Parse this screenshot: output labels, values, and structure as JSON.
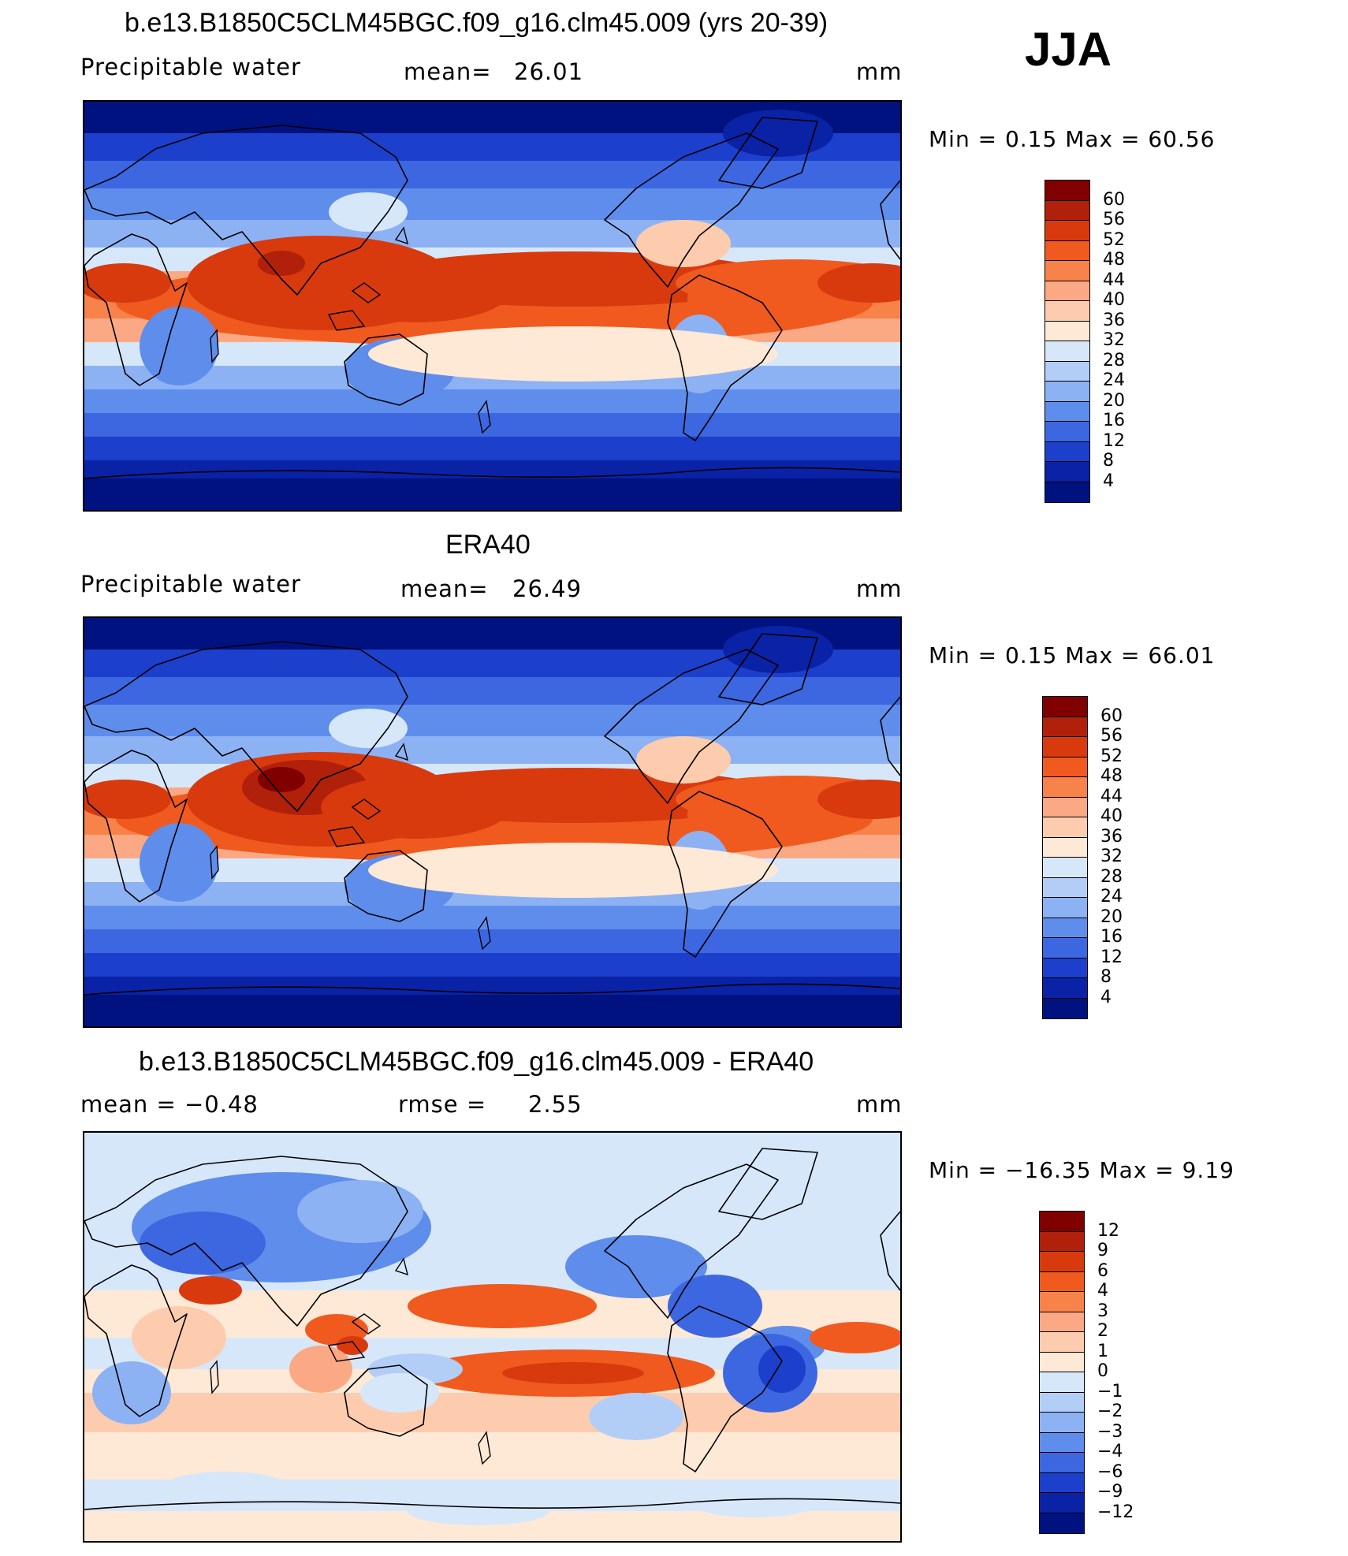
{
  "season": "JJA",
  "panels": [
    {
      "title": "b.e13.B1850C5CLM45BGC.f09_g16.clm45.009 (yrs 20-39)",
      "left_label": "Precipitable  water",
      "stat_label": "mean=",
      "stat_value": "26.01",
      "units": "mm",
      "minmax": "Min  =     0.15  Max  =    60.56",
      "field": "model"
    },
    {
      "title": "ERA40",
      "left_label": "Precipitable  water",
      "stat_label": "mean=",
      "stat_value": "26.49",
      "units": "mm",
      "minmax": "Min  =     0.15  Max  =    66.01",
      "field": "obs"
    },
    {
      "title": "b.e13.B1850C5CLM45BGC.f09_g16.clm45.009 - ERA40",
      "left_label": "mean  =    −0.48",
      "stat_label": "rmse  =",
      "stat_value": "2.55",
      "units": "mm",
      "minmax": "Min  = −16.35  Max  =     9.19",
      "field": "diff"
    }
  ],
  "colorbars": {
    "pw": {
      "labels": [
        "60",
        "56",
        "52",
        "48",
        "44",
        "40",
        "36",
        "32",
        "28",
        "24",
        "20",
        "16",
        "12",
        "8",
        "4"
      ],
      "colors": [
        "#800000",
        "#B0200A",
        "#D83A0E",
        "#F05A1E",
        "#F7824A",
        "#FBA984",
        "#FDCCAE",
        "#FEE8D6",
        "#D7E7FA",
        "#B2CEF7",
        "#8DB2F3",
        "#5E8DEC",
        "#3C67E0",
        "#1C3FCC",
        "#0A22A6",
        "#001280"
      ]
    },
    "diff": {
      "labels": [
        "12",
        "9",
        "6",
        "4",
        "3",
        "2",
        "1",
        "0",
        "−1",
        "−2",
        "−3",
        "−4",
        "−6",
        "−9",
        "−12"
      ],
      "colors": [
        "#800000",
        "#B0200A",
        "#D83A0E",
        "#F05A1E",
        "#F7824A",
        "#FBA984",
        "#FDCCAE",
        "#FEE8D6",
        "#D7E7FA",
        "#B2CEF7",
        "#8DB2F3",
        "#5E8DEC",
        "#3C67E0",
        "#1C3FCC",
        "#0A22A6",
        "#001280"
      ]
    }
  }
}
